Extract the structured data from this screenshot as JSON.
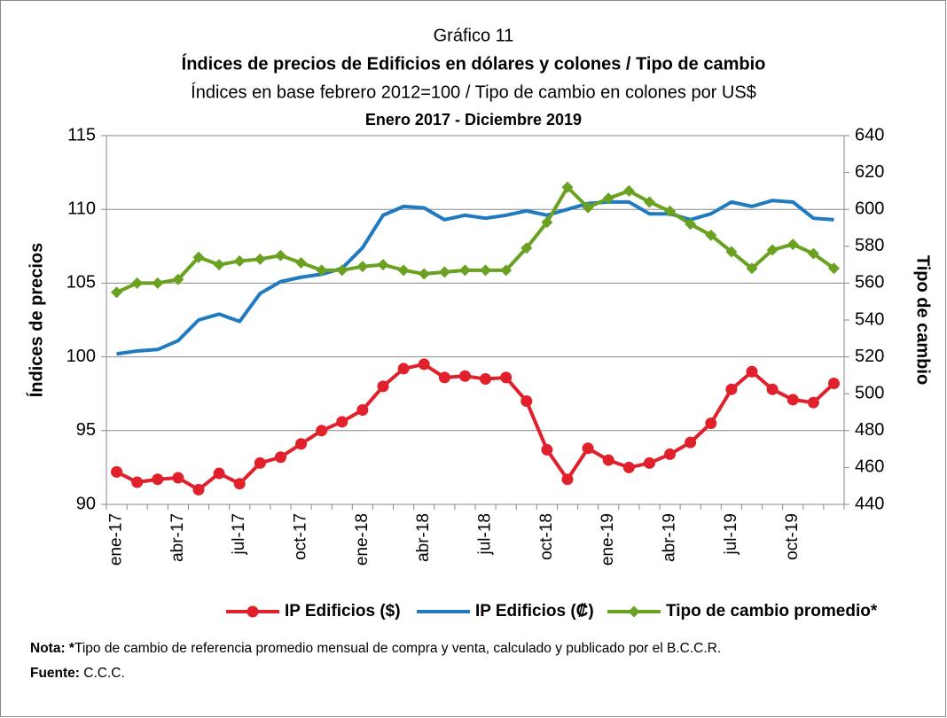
{
  "chart_data": {
    "type": "line",
    "title": "Gráfico 11",
    "subtitle": "Índices de precios de Edificios en dólares y colones / Tipo de cambio",
    "subtitle2": "Índices en base febrero 2012=100 / Tipo de cambio en colones por US$",
    "period": "Enero 2017 - Diciembre 2019",
    "ylabel": "Índices de precios",
    "y2label": "Tipo de cambio",
    "categories": [
      "ene-17",
      null,
      null,
      "abr-17",
      null,
      null,
      "jul-17",
      null,
      null,
      "oct-17",
      null,
      null,
      "ene-18",
      null,
      null,
      "abr-18",
      null,
      null,
      "jul-18",
      null,
      null,
      "oct-18",
      null,
      null,
      "ene-19",
      null,
      null,
      "abr-19",
      null,
      null,
      "jul-19",
      null,
      null,
      "oct-19",
      null,
      null
    ],
    "ylim": [
      90,
      115
    ],
    "yticks": [
      90,
      95,
      100,
      105,
      110,
      115
    ],
    "y2lim": [
      440,
      640
    ],
    "y2ticks": [
      440,
      460,
      480,
      500,
      520,
      540,
      560,
      580,
      600,
      620,
      640
    ],
    "grid": true,
    "legend": "bottom",
    "series": [
      {
        "name": "IP Edificios ($)",
        "color": "#e0202a",
        "marker": "circle",
        "values": [
          92.2,
          91.5,
          91.7,
          91.8,
          91.0,
          92.1,
          91.4,
          92.8,
          93.2,
          94.1,
          95.0,
          95.6,
          96.4,
          98.0,
          99.2,
          99.5,
          98.6,
          98.7,
          98.5,
          98.6,
          97.0,
          93.7,
          91.7,
          93.8,
          93.0,
          92.5,
          92.8,
          93.4,
          94.2,
          95.5,
          97.8,
          99.0,
          97.8,
          97.1,
          96.9,
          98.2
        ]
      },
      {
        "name": "IP Edificios (₡)",
        "color": "#1f7ac0",
        "marker": "none",
        "values": [
          100.2,
          100.4,
          100.5,
          101.1,
          102.5,
          102.9,
          102.4,
          104.3,
          105.1,
          105.4,
          105.6,
          106.0,
          107.4,
          109.6,
          110.2,
          110.1,
          109.3,
          109.6,
          109.4,
          109.6,
          109.9,
          109.6,
          110.0,
          110.4,
          110.5,
          110.5,
          109.7,
          109.7,
          109.3,
          109.7,
          110.5,
          110.2,
          110.6,
          110.5,
          109.4,
          109.3
        ]
      },
      {
        "name": "Tipo de cambio promedio*",
        "color": "#6aa121",
        "marker": "diamond",
        "axis": "y2",
        "values": [
          555,
          560,
          560,
          562,
          574,
          570,
          572,
          573,
          575,
          571,
          567,
          567,
          569,
          570,
          567,
          565,
          566,
          567,
          567,
          567,
          579,
          593,
          612,
          601,
          606,
          610,
          604,
          599,
          592,
          586,
          577,
          568,
          578,
          581,
          576,
          568
        ]
      }
    ],
    "note_label": "Nota:",
    "note_star": "*",
    "note": "Tipo de cambio de referencia promedio mensual de compra y venta, calculado y publicado por el B.C.C.R.",
    "source_label": "Fuente:",
    "source": "C.C.C."
  }
}
